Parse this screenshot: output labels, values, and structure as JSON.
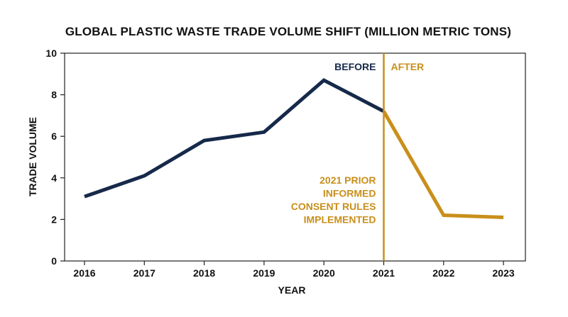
{
  "chart_data": {
    "type": "line",
    "title": "GLOBAL PLASTIC WASTE TRADE VOLUME SHIFT (MILLION METRIC TONS)",
    "xlabel": "YEAR",
    "ylabel": "TRADE VOLUME",
    "x": [
      "2016",
      "2017",
      "2018",
      "2019",
      "2020",
      "2021",
      "2022",
      "2023"
    ],
    "ylim": [
      0,
      10
    ],
    "yticks": [
      "0",
      "2",
      "4",
      "6",
      "8",
      "10"
    ],
    "grid": false,
    "series": [
      {
        "values": [
          3.1,
          4.1,
          5.8,
          6.2,
          8.7,
          7.2,
          null,
          null
        ],
        "color": "#16294a"
      },
      {
        "values": [
          null,
          null,
          null,
          null,
          null,
          7.2,
          2.2,
          2.1
        ],
        "color": "#c98f1b"
      }
    ],
    "annotations": {
      "marker_x": "2021",
      "marker_color": "#c98f1b",
      "before_label": "BEFORE",
      "before_color": "#16294a",
      "after_label": "AFTER",
      "after_color": "#c98f1b",
      "note_lines": [
        "2021 PRIOR",
        "INFORMED",
        "CONSENT RULES",
        "IMPLEMENTED"
      ],
      "note_color": "#c98f1b"
    }
  }
}
